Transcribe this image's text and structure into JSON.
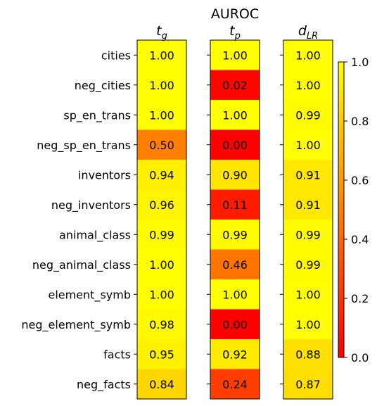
{
  "chart_data": {
    "type": "heatmap",
    "title": "AUROC",
    "columns": [
      {
        "name": "t",
        "subscript": "g"
      },
      {
        "name": "t",
        "subscript": "p"
      },
      {
        "name": "d",
        "subscript": "LR"
      }
    ],
    "rows": [
      "cities",
      "neg_cities",
      "sp_en_trans",
      "neg_sp_en_trans",
      "inventors",
      "neg_inventors",
      "animal_class",
      "neg_animal_class",
      "element_symb",
      "neg_element_symb",
      "facts",
      "neg_facts"
    ],
    "values": [
      [
        1.0,
        1.0,
        1.0
      ],
      [
        1.0,
        0.02,
        1.0
      ],
      [
        1.0,
        1.0,
        0.99
      ],
      [
        0.5,
        0.0,
        1.0
      ],
      [
        0.94,
        0.9,
        0.91
      ],
      [
        0.96,
        0.11,
        0.91
      ],
      [
        0.99,
        0.99,
        0.99
      ],
      [
        1.0,
        0.46,
        0.99
      ],
      [
        1.0,
        1.0,
        1.0
      ],
      [
        0.98,
        0.0,
        1.0
      ],
      [
        0.95,
        0.92,
        0.88
      ],
      [
        0.84,
        0.24,
        0.87
      ]
    ],
    "value_format": "2 decimals",
    "colormap": "autumn",
    "colorbar": {
      "range": [
        0.0,
        1.0
      ],
      "ticks": [
        "0.0",
        "0.2",
        "0.4",
        "0.6",
        "0.8",
        "1.0"
      ]
    }
  }
}
